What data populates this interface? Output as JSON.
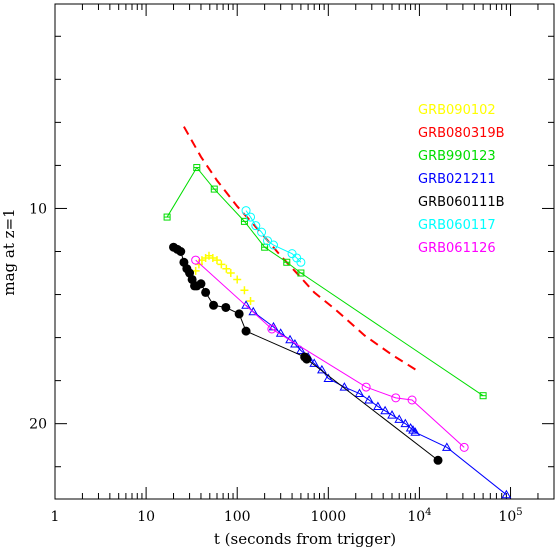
{
  "chart_data": {
    "type": "scatter",
    "xlabel": "t (seconds from trigger)",
    "ylabel": "mag at z=1",
    "x_scale": "log",
    "xlim": [
      1,
      300000
    ],
    "ylim": [
      23.5,
      0.5
    ],
    "y_inverted": true,
    "x_ticks": [
      {
        "value": 1,
        "label": "1"
      },
      {
        "value": 10,
        "label": "10"
      },
      {
        "value": 100,
        "label": "100"
      },
      {
        "value": 1000,
        "label": "1000"
      },
      {
        "value": 10000,
        "label": "10",
        "exp": "4"
      },
      {
        "value": 100000,
        "label": "10",
        "exp": "5"
      }
    ],
    "y_ticks": [
      {
        "value": 10,
        "label": "10"
      },
      {
        "value": 20,
        "label": "20"
      }
    ],
    "grid": false,
    "legend_position": "top-right",
    "series": [
      {
        "name": "GRB090102",
        "color": "#ffff00",
        "marker": "cross",
        "connected": false,
        "points": [
          [
            35,
            12.9
          ],
          [
            38,
            12.6
          ],
          [
            41,
            12.4
          ],
          [
            45,
            12.3
          ],
          [
            49,
            12.2
          ],
          [
            54,
            12.3
          ],
          [
            60,
            12.4
          ],
          [
            67,
            12.6
          ],
          [
            76,
            12.8
          ],
          [
            85,
            13.0
          ],
          [
            100,
            13.3
          ],
          [
            120,
            13.8
          ],
          [
            140,
            14.3
          ]
        ]
      },
      {
        "name": "GRB080319B",
        "color": "#ff0000",
        "marker": "dash",
        "connected": true,
        "points": [
          [
            26,
            6.2
          ],
          [
            40,
            7.6
          ],
          [
            60,
            8.7
          ],
          [
            100,
            9.9
          ],
          [
            180,
            11.1
          ],
          [
            300,
            12.2
          ],
          [
            450,
            13.0
          ],
          [
            700,
            13.9
          ],
          [
            1200,
            14.7
          ],
          [
            2500,
            15.9
          ],
          [
            5000,
            16.8
          ],
          [
            10000,
            17.6
          ]
        ]
      },
      {
        "name": "GRB990123",
        "color": "#00dd00",
        "marker": "square",
        "connected": true,
        "points": [
          [
            17,
            10.4
          ],
          [
            36,
            8.1
          ],
          [
            56,
            9.1
          ],
          [
            120,
            10.6
          ],
          [
            200,
            11.8
          ],
          [
            350,
            12.5
          ],
          [
            500,
            13.0
          ],
          [
            50000,
            18.7
          ]
        ]
      },
      {
        "name": "GRB021211",
        "color": "#0000ff",
        "marker": "triangle",
        "connected": true,
        "points": [
          [
            125,
            14.5
          ],
          [
            150,
            14.8
          ],
          [
            250,
            15.5
          ],
          [
            300,
            15.8
          ],
          [
            380,
            16.1
          ],
          [
            430,
            16.3
          ],
          [
            500,
            16.6
          ],
          [
            600,
            16.9
          ],
          [
            700,
            17.2
          ],
          [
            850,
            17.5
          ],
          [
            1000,
            17.9
          ],
          [
            1500,
            18.3
          ],
          [
            2200,
            18.6
          ],
          [
            2800,
            18.9
          ],
          [
            3500,
            19.2
          ],
          [
            4200,
            19.4
          ],
          [
            5000,
            19.6
          ],
          [
            6000,
            19.8
          ],
          [
            7000,
            20.0
          ],
          [
            8000,
            20.2
          ],
          [
            8500,
            20.3
          ],
          [
            9000,
            20.4
          ],
          [
            20000,
            21.1
          ],
          [
            90000,
            23.3
          ]
        ]
      },
      {
        "name": "GRB060111B",
        "color": "#000000",
        "marker": "filled-circle",
        "connected": true,
        "points": [
          [
            20,
            11.8
          ],
          [
            22,
            11.9
          ],
          [
            24,
            12.0
          ],
          [
            26,
            12.5
          ],
          [
            28,
            12.8
          ],
          [
            30,
            13.0
          ],
          [
            32,
            13.3
          ],
          [
            34,
            13.6
          ],
          [
            36,
            13.6
          ],
          [
            40,
            13.5
          ],
          [
            45,
            13.9
          ],
          [
            55,
            14.5
          ],
          [
            75,
            14.6
          ],
          [
            105,
            14.9
          ],
          [
            125,
            15.7
          ],
          [
            550,
            16.9
          ],
          [
            580,
            17.0
          ],
          [
            16000,
            21.7
          ]
        ]
      },
      {
        "name": "GRB060117",
        "color": "#00ffff",
        "marker": "circle",
        "connected": true,
        "points": [
          [
            125,
            10.1
          ],
          [
            140,
            10.4
          ],
          [
            160,
            10.8
          ],
          [
            185,
            11.1
          ],
          [
            215,
            11.5
          ],
          [
            250,
            11.7
          ],
          [
            400,
            12.1
          ],
          [
            450,
            12.3
          ],
          [
            500,
            12.5
          ]
        ]
      },
      {
        "name": "GRB061126",
        "color": "#ff00ff",
        "marker": "circle",
        "connected": true,
        "points": [
          [
            35,
            12.4
          ],
          [
            240,
            15.6
          ],
          [
            2600,
            18.3
          ],
          [
            5500,
            18.8
          ],
          [
            8300,
            18.9
          ],
          [
            31000,
            21.1
          ]
        ]
      }
    ]
  }
}
